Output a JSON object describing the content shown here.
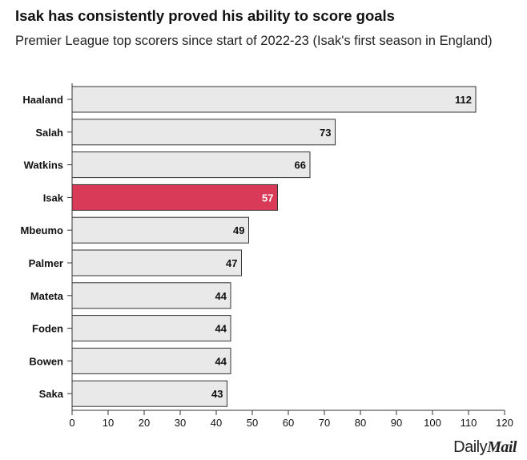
{
  "title": "Isak has consistently proved his ability to score goals",
  "subtitle": "Premier League top scorers since start of 2022-23 (Isak's first season in England)",
  "brand": {
    "part1": "Daily",
    "part2": "Mail"
  },
  "colors": {
    "bar": "#e9e9e9",
    "highlight": "#d93a58",
    "stroke": "#333333"
  },
  "chart_data": {
    "type": "bar",
    "orientation": "horizontal",
    "categories": [
      "Haaland",
      "Salah",
      "Watkins",
      "Isak",
      "Mbeumo",
      "Palmer",
      "Mateta",
      "Foden",
      "Bowen",
      "Saka"
    ],
    "values": [
      112,
      73,
      66,
      57,
      49,
      47,
      44,
      44,
      44,
      43
    ],
    "highlight": "Isak",
    "xlim": [
      0,
      120
    ],
    "xticks": [
      0,
      10,
      20,
      30,
      40,
      50,
      60,
      70,
      80,
      90,
      100,
      110,
      120
    ],
    "grid": false
  }
}
